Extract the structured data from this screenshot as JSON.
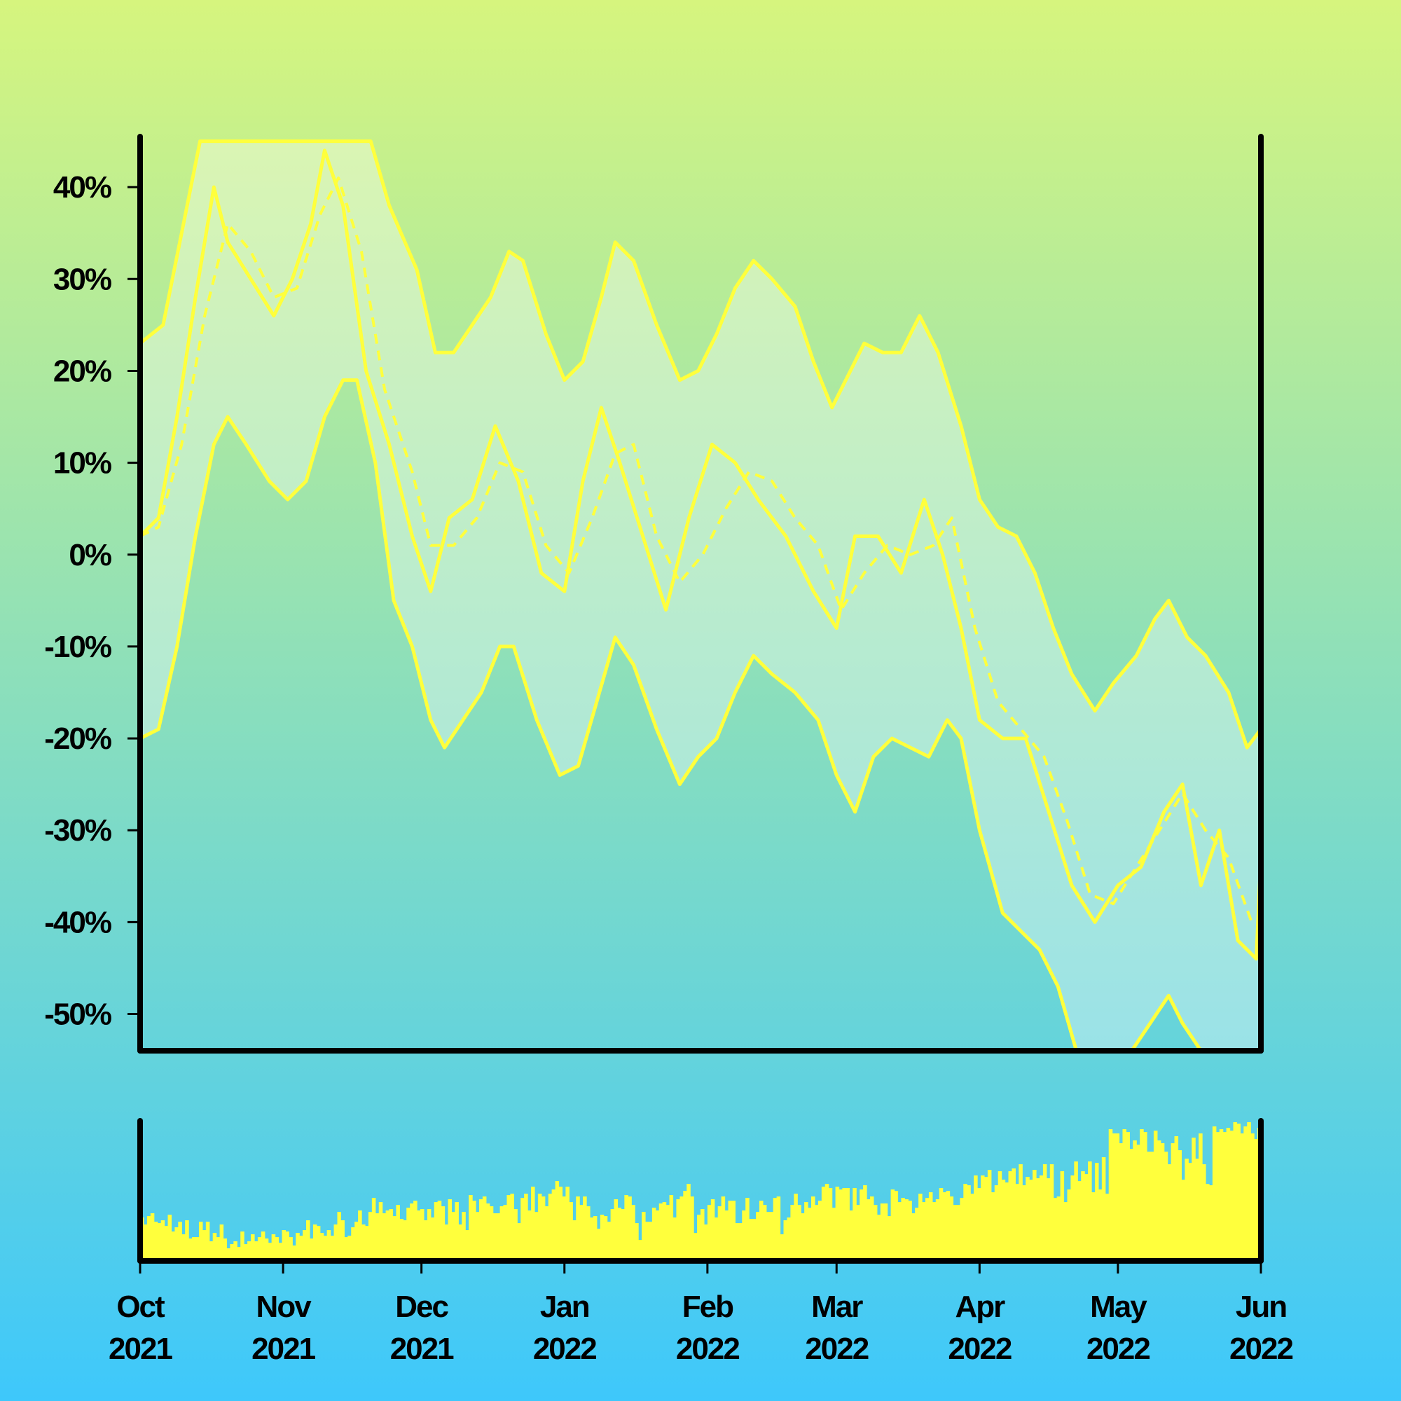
{
  "chart_data": {
    "type": "line",
    "x_type": "date",
    "series": [
      {
        "values": [
          [
            "2021-10-01",
            2
          ],
          [
            "2021-10-05",
            4
          ],
          [
            "2021-10-09",
            15
          ],
          [
            "2021-10-13",
            28
          ],
          [
            "2021-10-17",
            40
          ],
          [
            "2021-10-20",
            34
          ],
          [
            "2021-10-25",
            30
          ],
          [
            "2021-10-30",
            26
          ],
          [
            "2021-11-03",
            30
          ],
          [
            "2021-11-07",
            36
          ],
          [
            "2021-11-10",
            44
          ],
          [
            "2021-11-14",
            38
          ],
          [
            "2021-11-19",
            20
          ],
          [
            "2021-11-24",
            12
          ],
          [
            "2021-11-29",
            2
          ],
          [
            "2021-12-03",
            -4
          ],
          [
            "2021-12-07",
            4
          ],
          [
            "2021-12-12",
            6
          ],
          [
            "2021-12-17",
            14
          ],
          [
            "2021-12-22",
            8
          ],
          [
            "2021-12-27",
            -2
          ],
          [
            "2022-01-01",
            -4
          ],
          [
            "2022-01-05",
            8
          ],
          [
            "2022-01-09",
            16
          ],
          [
            "2022-01-13",
            10
          ],
          [
            "2022-01-18",
            2
          ],
          [
            "2022-01-23",
            -6
          ],
          [
            "2022-01-28",
            4
          ],
          [
            "2022-02-02",
            12
          ],
          [
            "2022-02-07",
            10
          ],
          [
            "2022-02-12",
            6
          ],
          [
            "2022-02-18",
            2
          ],
          [
            "2022-02-24",
            -4
          ],
          [
            "2022-03-01",
            -8
          ],
          [
            "2022-03-05",
            2
          ],
          [
            "2022-03-10",
            2
          ],
          [
            "2022-03-15",
            -2
          ],
          [
            "2022-03-20",
            6
          ],
          [
            "2022-03-24",
            0
          ],
          [
            "2022-03-28",
            -8
          ],
          [
            "2022-04-01",
            -18
          ],
          [
            "2022-04-06",
            -20
          ],
          [
            "2022-04-11",
            -20
          ],
          [
            "2022-04-16",
            -28
          ],
          [
            "2022-04-21",
            -36
          ],
          [
            "2022-04-26",
            -40
          ],
          [
            "2022-05-01",
            -36
          ],
          [
            "2022-05-06",
            -34
          ],
          [
            "2022-05-11",
            -28
          ],
          [
            "2022-05-15",
            -25
          ],
          [
            "2022-05-19",
            -36
          ],
          [
            "2022-05-23",
            -30
          ],
          [
            "2022-05-27",
            -42
          ],
          [
            "2022-05-31",
            -44
          ],
          [
            "2022-06-01",
            -33
          ]
        ]
      },
      {
        "style": "dashed",
        "values": [
          [
            "2021-10-01",
            2
          ],
          [
            "2021-10-05",
            3
          ],
          [
            "2021-10-10",
            12
          ],
          [
            "2021-10-15",
            26
          ],
          [
            "2021-10-20",
            36
          ],
          [
            "2021-10-25",
            33
          ],
          [
            "2021-10-30",
            28
          ],
          [
            "2021-11-04",
            29
          ],
          [
            "2021-11-09",
            37
          ],
          [
            "2021-11-13",
            41
          ],
          [
            "2021-11-18",
            33
          ],
          [
            "2021-11-23",
            18
          ],
          [
            "2021-11-29",
            9
          ],
          [
            "2021-12-03",
            1
          ],
          [
            "2021-12-08",
            1
          ],
          [
            "2021-12-13",
            4
          ],
          [
            "2021-12-18",
            10
          ],
          [
            "2021-12-23",
            9
          ],
          [
            "2021-12-28",
            1
          ],
          [
            "2022-01-02",
            -2
          ],
          [
            "2022-01-07",
            4
          ],
          [
            "2022-01-12",
            11
          ],
          [
            "2022-01-16",
            12
          ],
          [
            "2022-01-21",
            2
          ],
          [
            "2022-01-26",
            -3
          ],
          [
            "2022-01-31",
            0
          ],
          [
            "2022-02-05",
            5
          ],
          [
            "2022-02-10",
            9
          ],
          [
            "2022-02-15",
            8
          ],
          [
            "2022-02-20",
            4
          ],
          [
            "2022-02-25",
            1
          ],
          [
            "2022-03-02",
            -6
          ],
          [
            "2022-03-07",
            -2
          ],
          [
            "2022-03-12",
            1
          ],
          [
            "2022-03-17",
            0
          ],
          [
            "2022-03-22",
            1
          ],
          [
            "2022-03-26",
            4
          ],
          [
            "2022-03-31",
            -8
          ],
          [
            "2022-04-05",
            -16
          ],
          [
            "2022-04-10",
            -19
          ],
          [
            "2022-04-15",
            -22
          ],
          [
            "2022-04-20",
            -29
          ],
          [
            "2022-04-25",
            -37
          ],
          [
            "2022-04-30",
            -38
          ],
          [
            "2022-05-05",
            -34
          ],
          [
            "2022-05-10",
            -30
          ],
          [
            "2022-05-15",
            -26
          ],
          [
            "2022-05-20",
            -30
          ],
          [
            "2022-05-25",
            -33
          ],
          [
            "2022-05-30",
            -40
          ],
          [
            "2022-06-01",
            -40
          ]
        ]
      },
      {
        "values": [
          [
            "2021-10-01",
            23
          ],
          [
            "2021-10-06",
            25
          ],
          [
            "2021-10-10",
            35
          ],
          [
            "2021-10-14",
            45
          ],
          [
            "2021-10-31",
            45
          ],
          [
            "2021-11-20",
            45
          ],
          [
            "2021-11-24",
            38
          ],
          [
            "2021-11-30",
            31
          ],
          [
            "2021-12-04",
            22
          ],
          [
            "2021-12-08",
            22
          ],
          [
            "2021-12-12",
            25
          ],
          [
            "2021-12-16",
            28
          ],
          [
            "2021-12-20",
            33
          ],
          [
            "2021-12-23",
            32
          ],
          [
            "2021-12-28",
            24
          ],
          [
            "2022-01-01",
            19
          ],
          [
            "2022-01-05",
            21
          ],
          [
            "2022-01-09",
            28
          ],
          [
            "2022-01-12",
            34
          ],
          [
            "2022-01-16",
            32
          ],
          [
            "2022-01-21",
            25
          ],
          [
            "2022-01-26",
            19
          ],
          [
            "2022-01-30",
            20
          ],
          [
            "2022-02-03",
            24
          ],
          [
            "2022-02-07",
            29
          ],
          [
            "2022-02-11",
            32
          ],
          [
            "2022-02-15",
            30
          ],
          [
            "2022-02-20",
            27
          ],
          [
            "2022-02-24",
            21
          ],
          [
            "2022-02-28",
            16
          ],
          [
            "2022-03-03",
            19
          ],
          [
            "2022-03-07",
            23
          ],
          [
            "2022-03-11",
            22
          ],
          [
            "2022-03-15",
            22
          ],
          [
            "2022-03-19",
            26
          ],
          [
            "2022-03-23",
            22
          ],
          [
            "2022-03-28",
            14
          ],
          [
            "2022-04-01",
            6
          ],
          [
            "2022-04-05",
            3
          ],
          [
            "2022-04-09",
            2
          ],
          [
            "2022-04-13",
            -2
          ],
          [
            "2022-04-17",
            -8
          ],
          [
            "2022-04-21",
            -13
          ],
          [
            "2022-04-26",
            -17
          ],
          [
            "2022-04-30",
            -14
          ],
          [
            "2022-05-05",
            -11
          ],
          [
            "2022-05-09",
            -7
          ],
          [
            "2022-05-12",
            -5
          ],
          [
            "2022-05-16",
            -9
          ],
          [
            "2022-05-20",
            -11
          ],
          [
            "2022-05-25",
            -15
          ],
          [
            "2022-05-29",
            -21
          ],
          [
            "2022-06-01",
            -19
          ]
        ]
      },
      {
        "values": [
          [
            "2021-10-01",
            -20
          ],
          [
            "2021-10-05",
            -19
          ],
          [
            "2021-10-09",
            -10
          ],
          [
            "2021-10-13",
            2
          ],
          [
            "2021-10-17",
            12
          ],
          [
            "2021-10-20",
            15
          ],
          [
            "2021-10-24",
            12
          ],
          [
            "2021-10-29",
            8
          ],
          [
            "2021-11-02",
            6
          ],
          [
            "2021-11-06",
            8
          ],
          [
            "2021-11-10",
            15
          ],
          [
            "2021-11-14",
            19
          ],
          [
            "2021-11-17",
            19
          ],
          [
            "2021-11-21",
            10
          ],
          [
            "2021-11-25",
            -5
          ],
          [
            "2021-11-29",
            -10
          ],
          [
            "2021-12-03",
            -18
          ],
          [
            "2021-12-06",
            -21
          ],
          [
            "2021-12-10",
            -18
          ],
          [
            "2021-12-14",
            -15
          ],
          [
            "2021-12-18",
            -10
          ],
          [
            "2021-12-21",
            -10
          ],
          [
            "2021-12-26",
            -18
          ],
          [
            "2021-12-31",
            -24
          ],
          [
            "2022-01-04",
            -23
          ],
          [
            "2022-01-08",
            -16
          ],
          [
            "2022-01-12",
            -9
          ],
          [
            "2022-01-16",
            -12
          ],
          [
            "2022-01-21",
            -19
          ],
          [
            "2022-01-26",
            -25
          ],
          [
            "2022-01-30",
            -22
          ],
          [
            "2022-02-03",
            -20
          ],
          [
            "2022-02-07",
            -15
          ],
          [
            "2022-02-11",
            -11
          ],
          [
            "2022-02-15",
            -13
          ],
          [
            "2022-02-20",
            -15
          ],
          [
            "2022-02-25",
            -18
          ],
          [
            "2022-03-01",
            -24
          ],
          [
            "2022-03-05",
            -28
          ],
          [
            "2022-03-09",
            -22
          ],
          [
            "2022-03-13",
            -20
          ],
          [
            "2022-03-17",
            -21
          ],
          [
            "2022-03-21",
            -22
          ],
          [
            "2022-03-25",
            -18
          ],
          [
            "2022-03-28",
            -20
          ],
          [
            "2022-04-01",
            -30
          ],
          [
            "2022-04-06",
            -39
          ],
          [
            "2022-04-10",
            -41
          ],
          [
            "2022-04-14",
            -43
          ],
          [
            "2022-04-18",
            -47
          ],
          [
            "2022-04-22",
            -54
          ],
          [
            "2022-05-04",
            -54
          ],
          [
            "2022-05-08",
            -51
          ],
          [
            "2022-05-12",
            -48
          ],
          [
            "2022-05-15",
            -51
          ],
          [
            "2022-05-19",
            -54
          ],
          [
            "2022-05-23",
            -54
          ]
        ]
      }
    ],
    "volume": [
      31,
      26,
      32,
      34,
      28,
      27,
      29,
      25,
      33,
      21,
      24,
      28,
      19,
      29,
      16,
      17,
      17,
      28,
      22,
      28,
      14,
      20,
      17,
      26,
      16,
      9,
      12,
      14,
      10,
      21,
      12,
      14,
      19,
      14,
      17,
      21,
      16,
      13,
      19,
      17,
      13,
      22,
      21,
      17,
      11,
      20,
      18,
      22,
      29,
      16,
      26,
      25,
      20,
      18,
      22,
      18,
      26,
      35,
      29,
      17,
      18,
      24,
      28,
      36,
      26,
      25,
      35,
      45,
      34,
      42,
      34,
      36,
      37,
      32,
      40,
      30,
      29,
      38,
      41,
      43,
      36,
      37,
      29,
      37,
      31,
      42,
      43,
      39,
      26,
      44,
      35,
      42,
      26,
      35,
      22,
      47,
      43,
      35,
      44,
      46,
      41,
      39,
      34,
      34,
      39,
      40,
      47,
      48,
      37,
      27,
      45,
      48,
      36,
      53,
      35,
      48,
      46,
      39,
      48,
      51,
      57,
      53,
      46,
      53,
      42,
      29,
      46,
      40,
      46,
      39,
      31,
      32,
      23,
      33,
      32,
      28,
      37,
      44,
      38,
      37,
      47,
      46,
      40,
      27,
      15,
      35,
      28,
      28,
      38,
      36,
      41,
      42,
      40,
      47,
      31,
      44,
      46,
      50,
      55,
      46,
      20,
      33,
      37,
      26,
      40,
      44,
      31,
      39,
      46,
      36,
      43,
      43,
      27,
      27,
      36,
      45,
      30,
      30,
      35,
      43,
      40,
      35,
      35,
      45,
      46,
      19,
      29,
      31,
      40,
      48,
      40,
      34,
      42,
      38,
      46,
      40,
      43,
      53,
      55,
      52,
      38,
      53,
      51,
      52,
      52,
      36,
      52,
      40,
      51,
      54,
      44,
      46,
      40,
      33,
      41,
      41,
      32,
      51,
      50,
      42,
      45,
      44,
      43,
      34,
      38,
      48,
      42,
      45,
      49,
      42,
      44,
      52,
      49,
      50,
      46,
      40,
      40,
      45,
      55,
      54,
      48,
      61,
      52,
      61,
      60,
      65,
      49,
      54,
      64,
      58,
      56,
      64,
      66,
      55,
      69,
      54,
      60,
      58,
      65,
      59,
      61,
      69,
      59,
      69,
      45,
      46,
      64,
      42,
      51,
      61,
      71,
      57,
      64,
      62,
      71,
      49,
      70,
      51,
      74,
      48,
      94,
      91,
      91,
      84,
      94,
      92,
      80,
      86,
      83,
      94,
      92,
      78,
      78,
      93,
      86,
      84,
      78,
      69,
      84,
      89,
      79,
      58,
      73,
      70,
      88,
      73,
      91,
      69,
      55,
      54,
      96,
      92,
      94,
      92,
      95,
      93,
      99,
      98,
      91,
      96,
      99,
      91,
      87,
      95
    ],
    "y_ticks": [
      "40%",
      "30%",
      "20%",
      "10%",
      "0%",
      "-10%",
      "-20%",
      "-30%",
      "-40%",
      "-50%"
    ],
    "x_ticks": [
      {
        "date": "2021-10-01",
        "month": "Oct",
        "year": "2021"
      },
      {
        "date": "2021-11-01",
        "month": "Nov",
        "year": "2021"
      },
      {
        "date": "2021-12-01",
        "month": "Dec",
        "year": "2021"
      },
      {
        "date": "2022-01-01",
        "month": "Jan",
        "year": "2022"
      },
      {
        "date": "2022-02-01",
        "month": "Feb",
        "year": "2022"
      },
      {
        "date": "2022-03-01",
        "month": "Mar",
        "year": "2022"
      },
      {
        "date": "2022-04-01",
        "month": "Apr",
        "year": "2022"
      },
      {
        "date": "2022-05-01",
        "month": "May",
        "year": "2022"
      },
      {
        "date": "2022-06-01",
        "month": "Jun",
        "year": "2022"
      }
    ],
    "x_range": [
      "2021-10-01",
      "2022-06-01"
    ],
    "ylim": [
      -54,
      45.5
    ],
    "grid": false,
    "legend": "none"
  },
  "colors": {
    "background_top": "#d6f57e",
    "background_bottom": "#3ec8fb",
    "line": "#ffff3c",
    "band_fill": "rgba(255,255,255,0.35)",
    "axis": "#000000"
  }
}
